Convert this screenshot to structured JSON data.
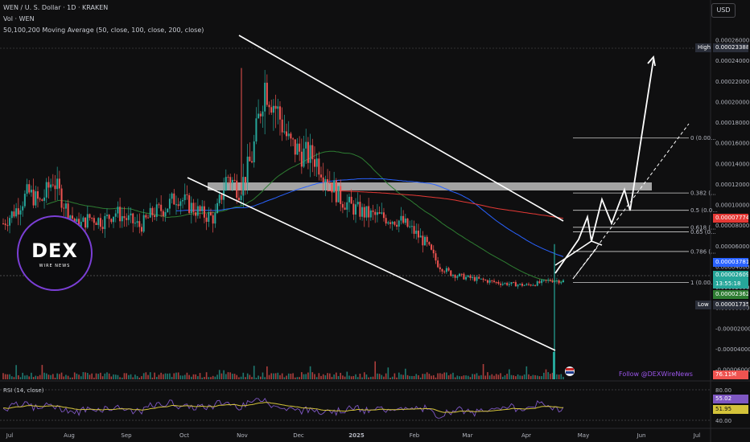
{
  "header": {
    "title": "WEN / U. S. Dollar · 1D · KRAKEN",
    "vol": "Vol · WEN",
    "ma": "50,100,200 Moving Average (50, close, 100, close, 200, close)"
  },
  "currency_button": "USD",
  "logo": {
    "main": "DEX",
    "sub": "WIRE NEWS"
  },
  "follow_text": "Follow @DEXWireNews",
  "rsi_label": "RSI (14, close)",
  "colors": {
    "background": "#0f0f10",
    "up": "#26a69a",
    "down": "#ef5350",
    "ma50": "#2e7d32",
    "ma100": "#2962ff",
    "ma200": "#e53935",
    "rsi": "#7e57c2",
    "rsi_ma": "#d4c33a",
    "resistance_box": "#bdbdbd"
  },
  "price_tags": {
    "high": {
      "label": "High",
      "value": "0.00023388"
    },
    "ma200": {
      "value": "0.00007774"
    },
    "ma100": {
      "value": "0.00003781"
    },
    "current": {
      "value": "0.00002609",
      "countdown": "13:55:18"
    },
    "ma50": {
      "value": "0.00002362"
    },
    "low": {
      "label": "Low",
      "value": "0.00001735"
    },
    "volume": {
      "value": "76.11M"
    },
    "rsi": {
      "value": "55.02"
    },
    "rsi_ma": {
      "value": "51.95"
    }
  },
  "chart_data": {
    "type": "candlestick",
    "x_ticks": [
      "Jul",
      "Aug",
      "Sep",
      "Oct",
      "Nov",
      "Dec",
      "2025",
      "Feb",
      "Mar",
      "Apr",
      "May",
      "Jun",
      "Jul"
    ],
    "y_ticks": [
      "0.00026000",
      "0.00024000",
      "0.00022000",
      "0.00020000",
      "0.00018000",
      "0.00016000",
      "0.00014000",
      "0.00012000",
      "0.00010000",
      "0.00008000",
      "0.00006000",
      "0.00004000",
      "0.00002000",
      "0.00000000",
      "-0.00002000",
      "-0.00004000",
      "-0.00006000"
    ],
    "ylim": [
      -6e-05,
      0.00026
    ],
    "rsi_ticks": [
      "80.00",
      "40.00"
    ],
    "fib_levels": [
      {
        "label": "0 (0.00...",
        "value": 0.000165
      },
      {
        "label": "0.382 (...",
        "value": 0.0001116
      },
      {
        "label": "0.5 (0.0...",
        "value": 9.48e-05
      },
      {
        "label": "0.618 (...",
        "value": 7.83e-05
      },
      {
        "label": "0.65 (0...",
        "value": 7.38e-05
      },
      {
        "label": "0.786 (...",
        "value": 5.48e-05
      },
      {
        "label": "1 (0.00...",
        "value": 2.48e-05
      }
    ],
    "approx_close_series": [
      8.2e-05,
      9.5e-05,
      0.000112,
      0.000102,
      0.000125,
      9.8e-05,
      7.9e-05,
      8.8e-05,
      8.4e-05,
      9.3e-05,
      8.6e-05,
      7.9e-05,
      9.2e-05,
      9.7e-05,
      0.000109,
      9.9e-05,
      9.1e-05,
      8.7e-05,
      0.000129,
      0.000114,
      0.000147,
      0.000218,
      0.000192,
      0.000159,
      0.00015,
      0.000146,
      0.000129,
      0.000107,
      9.8e-05,
      9.2e-05,
      8.9e-05,
      8.7e-05,
      8.4e-05,
      7.4e-05,
      6.2e-05,
      4.1e-05,
      3.3e-05,
      3e-05,
      2.8e-05,
      2.6e-05,
      2.4e-05,
      2.3e-05,
      2.2e-05,
      2.4e-05,
      2.7e-05,
      2.6e-05
    ]
  }
}
